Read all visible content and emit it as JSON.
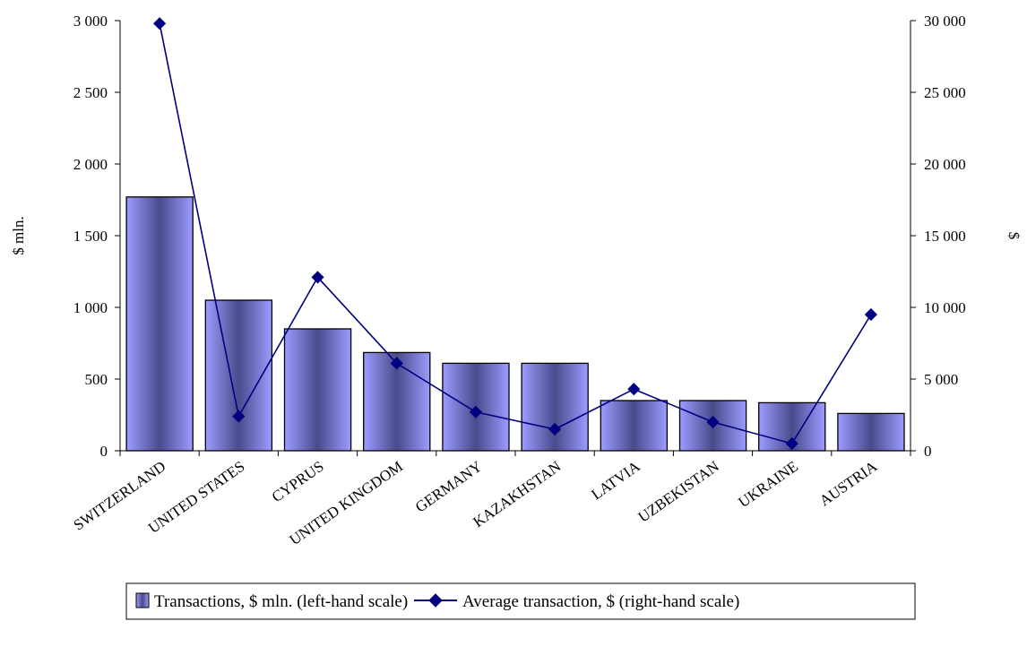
{
  "chart_data": {
    "type": "bar+line",
    "categories": [
      "SWITZERLAND",
      "UNITED STATES",
      "CYPRUS",
      "UNITED KINGDOM",
      "GERMANY",
      "KAZAKHSTAN",
      "LATVIA",
      "UZBEKISTAN",
      "UKRAINE",
      "AUSTRIA"
    ],
    "series": [
      {
        "name": "Transactions, $ mln. (left-hand scale)",
        "type": "bar",
        "axis": "left",
        "values": [
          1770,
          1050,
          850,
          685,
          610,
          610,
          350,
          350,
          335,
          260
        ]
      },
      {
        "name": "Average transaction, $ (right-hand scale)",
        "type": "line",
        "axis": "right",
        "values": [
          29800,
          2400,
          12100,
          6100,
          2700,
          1500,
          4300,
          2000,
          500,
          9500
        ]
      }
    ],
    "title": "",
    "ylabel": "$ mln.",
    "y2label": "$",
    "ylim": [
      0,
      3000
    ],
    "y2lim": [
      0,
      30000
    ],
    "yticks": [
      "0",
      "500",
      "1 000",
      "1 500",
      "2 000",
      "2 500",
      "3 000"
    ],
    "y2ticks": [
      "0",
      "5 000",
      "10 000",
      "15 000",
      "20 000",
      "25 000",
      "30 000"
    ],
    "grid": false,
    "legend": "bottom",
    "colors": {
      "bar_light": "#9c9cff",
      "bar_dark": "#4a4a8c",
      "line": "#000080"
    }
  }
}
